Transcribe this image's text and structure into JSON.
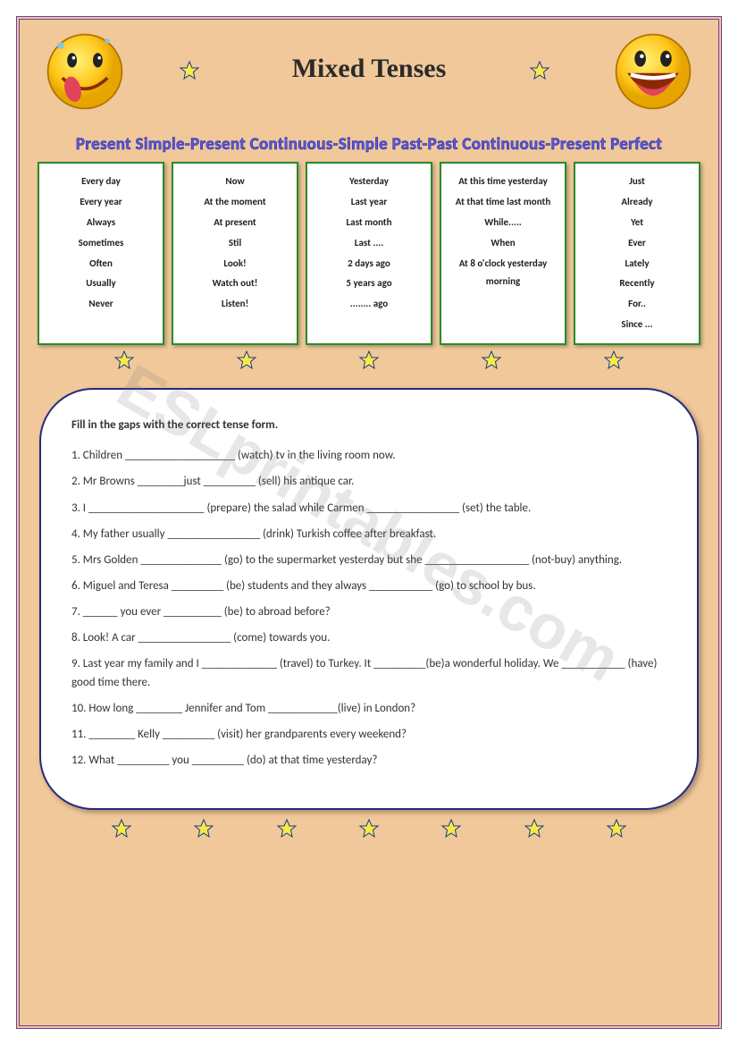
{
  "title": "Mixed Tenses",
  "subtitle": "Present Simple-Present Continuous-Simple Past-Past Continuous-Present Perfect",
  "watermark": "ESLprintables.com",
  "colors": {
    "page_bg": "#f0c89a",
    "border": "#6b3fa0",
    "box_border": "#2a8a2a",
    "panel_border": "#2a2a7a",
    "subtitle_color": "#5a5ad8",
    "star_fill": "#f7e948",
    "star_stroke": "#1a3a8a",
    "smiley_fill": "#ffd633"
  },
  "boxes": [
    {
      "items": [
        "Every day",
        "Every year",
        "Always",
        "Sometimes",
        "Often",
        "Usually",
        "Never"
      ]
    },
    {
      "items": [
        "Now",
        "At the moment",
        "At present",
        "Stil",
        "Look!",
        "Watch out!",
        "Listen!"
      ]
    },
    {
      "items": [
        "Yesterday",
        "Last year",
        "Last month",
        "Last ....",
        "2 days ago",
        "5 years ago",
        "........ ago"
      ]
    },
    {
      "items": [
        "At this time yesterday",
        "At that time last month",
        "While.....",
        "When",
        "At 8 o'clock yesterday morning"
      ]
    },
    {
      "items": [
        "Just",
        "Already",
        "Yet",
        "Ever",
        "Lately",
        "Recently",
        "For..",
        "Since ..."
      ]
    }
  ],
  "instruction": "Fill in the gaps with the correct tense form.",
  "questions": [
    "1. Children ___________________ (watch) tv in the living room now.",
    "2. Mr Browns ________just _________ (sell) his antique car.",
    "3. I ____________________ (prepare) the salad while Carmen ________________ (set) the table.",
    "4. My father usually ________________ (drink) Turkish coffee after breakfast.",
    "5. Mrs Golden ______________ (go) to the supermarket yesterday but she __________________ (not-buy) anything.",
    "6. Miguel and Teresa _________ (be) students and they always ___________ (go) to school by bus.",
    "7. ______ you ever __________ (be) to abroad before?",
    "8. Look! A car ________________ (come) towards you.",
    "9. Last year my family and I _____________ (travel) to Turkey. It _________(be)a wonderful holiday. We ___________ (have) good time there.",
    "10. How long ________ Jennifer and Tom ____________(live) in London?",
    "11. ________ Kelly _________ (visit) her grandparents every weekend?",
    "12. What _________ you _________ (do) at that time yesterday?"
  ]
}
